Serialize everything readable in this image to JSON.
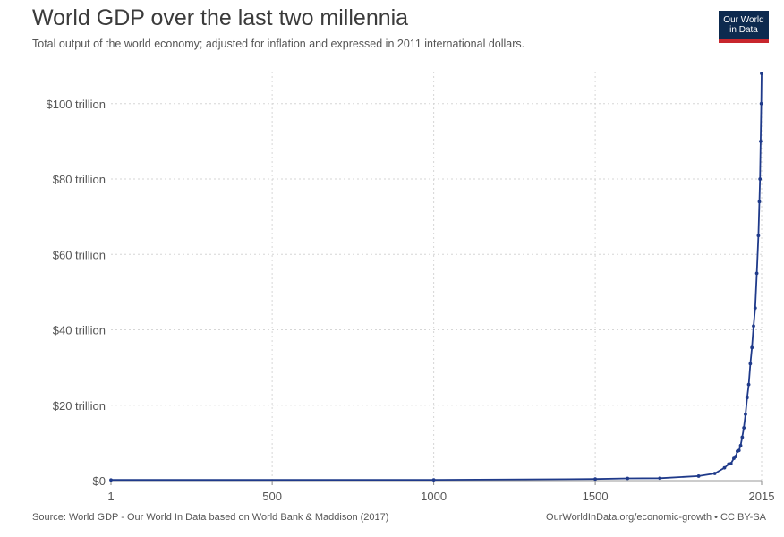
{
  "header": {
    "title": "World GDP over the last two millennia",
    "subtitle": "Total output of the world economy; adjusted for inflation and expressed in 2011 international dollars."
  },
  "logo": {
    "line1": "Our World",
    "line2": "in Data",
    "bg_color": "#0d2a4f",
    "accent_color": "#c8262d"
  },
  "footer": {
    "source": "Source: World GDP - Our World In Data based on World Bank & Maddison (2017)",
    "credit": "OurWorldInData.org/economic-growth • CC BY-SA"
  },
  "chart_data": {
    "type": "line",
    "title": "World GDP over the last two millennia",
    "xlabel": "",
    "ylabel": "",
    "xlim": [
      1,
      2015
    ],
    "ylim": [
      0,
      110
    ],
    "y_unit": "trillion international-$ (2011)",
    "grid": true,
    "x_ticks": [
      1,
      500,
      1000,
      1500,
      2015
    ],
    "x_tick_labels": [
      "1",
      "500",
      "1000",
      "1500",
      "2015"
    ],
    "y_ticks": [
      0,
      20,
      40,
      60,
      80,
      100
    ],
    "y_tick_labels": [
      "$0",
      "$20 trillion",
      "$40 trillion",
      "$60 trillion",
      "$80 trillion",
      "$100 trillion"
    ],
    "line_color": "#1f3a8a",
    "series": [
      {
        "x": [
          1,
          1000,
          1500,
          1600,
          1700,
          1820,
          1870,
          1900,
          1913,
          1920,
          1929,
          1935,
          1940,
          1945,
          1950,
          1955,
          1960,
          1965,
          1970,
          1975,
          1980,
          1985,
          1990,
          1995,
          2000,
          2005,
          2008,
          2010,
          2012,
          2014,
          2015
        ],
        "y": [
          0.18,
          0.21,
          0.43,
          0.6,
          0.64,
          1.2,
          1.9,
          3.4,
          4.4,
          4.5,
          5.9,
          6.4,
          7.8,
          8.0,
          9.3,
          11.5,
          14.0,
          17.6,
          22.0,
          25.5,
          31.0,
          35.3,
          41.0,
          45.8,
          55.0,
          65.0,
          74.0,
          80.0,
          90.0,
          100.0,
          108.0
        ]
      }
    ]
  }
}
